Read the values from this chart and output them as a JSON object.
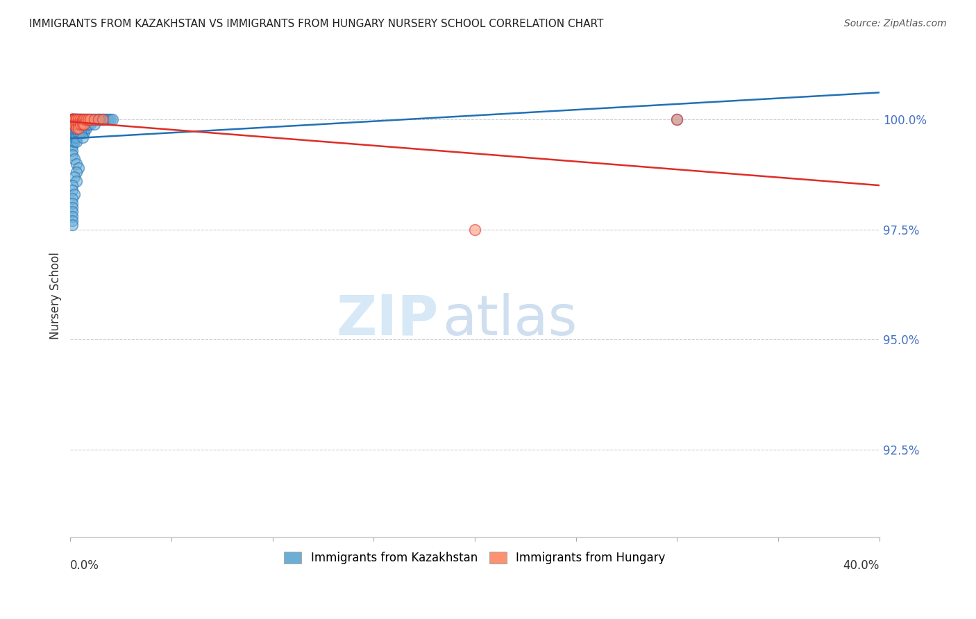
{
  "title": "IMMIGRANTS FROM KAZAKHSTAN VS IMMIGRANTS FROM HUNGARY NURSERY SCHOOL CORRELATION CHART",
  "source": "Source: ZipAtlas.com",
  "ylabel": "Nursery School",
  "ytick_labels": [
    "100.0%",
    "97.5%",
    "95.0%",
    "92.5%"
  ],
  "ytick_values": [
    1.0,
    0.975,
    0.95,
    0.925
  ],
  "xlim": [
    0.0,
    0.4
  ],
  "ylim": [
    0.905,
    1.015
  ],
  "legend_label_kaz": "Immigrants from Kazakhstan",
  "legend_label_hun": "Immigrants from Hungary",
  "color_kaz": "#6baed6",
  "color_hun": "#fc9272",
  "trendline_kaz_color": "#2171b5",
  "trendline_hun_color": "#de2d26",
  "kaz_x": [
    0.001,
    0.001,
    0.001,
    0.001,
    0.001,
    0.001,
    0.001,
    0.001,
    0.001,
    0.001,
    0.001,
    0.001,
    0.001,
    0.001,
    0.001,
    0.002,
    0.002,
    0.002,
    0.002,
    0.002,
    0.002,
    0.002,
    0.002,
    0.002,
    0.002,
    0.003,
    0.003,
    0.003,
    0.003,
    0.003,
    0.003,
    0.003,
    0.003,
    0.003,
    0.004,
    0.004,
    0.004,
    0.004,
    0.004,
    0.004,
    0.005,
    0.005,
    0.005,
    0.005,
    0.005,
    0.006,
    0.006,
    0.006,
    0.006,
    0.007,
    0.007,
    0.007,
    0.007,
    0.008,
    0.008,
    0.008,
    0.009,
    0.009,
    0.01,
    0.01,
    0.011,
    0.012,
    0.012,
    0.013,
    0.014,
    0.015,
    0.016,
    0.017,
    0.018,
    0.019,
    0.02,
    0.021,
    0.003,
    0.004,
    0.005,
    0.006,
    0.002,
    0.003,
    0.004,
    0.003,
    0.002,
    0.003,
    0.001,
    0.001,
    0.002,
    0.001,
    0.001,
    0.001,
    0.001,
    0.001,
    0.001,
    0.001,
    0.3
  ],
  "kaz_y": [
    1.0,
    1.0,
    1.0,
    1.0,
    1.0,
    1.0,
    0.999,
    0.999,
    0.998,
    0.997,
    0.996,
    0.995,
    0.994,
    0.993,
    0.992,
    1.0,
    1.0,
    1.0,
    0.999,
    0.999,
    0.998,
    0.998,
    0.997,
    0.996,
    0.995,
    1.0,
    1.0,
    1.0,
    0.999,
    0.999,
    0.998,
    0.997,
    0.996,
    0.995,
    1.0,
    1.0,
    0.999,
    0.999,
    0.998,
    0.997,
    1.0,
    1.0,
    0.999,
    0.998,
    0.997,
    1.0,
    0.999,
    0.998,
    0.997,
    1.0,
    0.999,
    0.998,
    0.997,
    1.0,
    0.999,
    0.998,
    1.0,
    0.999,
    1.0,
    0.999,
    1.0,
    1.0,
    0.999,
    1.0,
    1.0,
    1.0,
    1.0,
    1.0,
    1.0,
    1.0,
    1.0,
    1.0,
    0.998,
    0.997,
    0.997,
    0.996,
    0.991,
    0.99,
    0.989,
    0.988,
    0.987,
    0.986,
    0.985,
    0.984,
    0.983,
    0.982,
    0.981,
    0.98,
    0.979,
    0.978,
    0.977,
    0.976,
    1.0
  ],
  "hun_x": [
    0.001,
    0.001,
    0.001,
    0.001,
    0.002,
    0.002,
    0.002,
    0.003,
    0.003,
    0.003,
    0.003,
    0.004,
    0.004,
    0.004,
    0.005,
    0.005,
    0.006,
    0.006,
    0.007,
    0.007,
    0.008,
    0.009,
    0.01,
    0.012,
    0.014,
    0.016,
    0.2,
    0.3
  ],
  "hun_y": [
    1.0,
    1.0,
    1.0,
    0.999,
    1.0,
    1.0,
    0.999,
    1.0,
    1.0,
    0.999,
    0.998,
    1.0,
    0.999,
    0.998,
    1.0,
    0.999,
    1.0,
    0.999,
    1.0,
    0.999,
    1.0,
    1.0,
    1.0,
    1.0,
    1.0,
    1.0,
    0.975,
    1.0
  ],
  "background_color": "#ffffff",
  "grid_color": "#cccccc"
}
